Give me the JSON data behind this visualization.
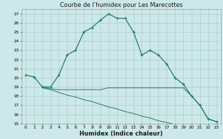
{
  "title": "Courbe de l’humidex pour Les Marecottes",
  "xlabel": "Humidex (Indice chaleur)",
  "xlim": [
    -0.5,
    23.5
  ],
  "ylim": [
    15,
    27.5
  ],
  "yticks": [
    15,
    16,
    17,
    18,
    19,
    20,
    21,
    22,
    23,
    24,
    25,
    26,
    27
  ],
  "xticks": [
    0,
    1,
    2,
    3,
    4,
    5,
    6,
    7,
    8,
    9,
    10,
    11,
    12,
    13,
    14,
    15,
    16,
    17,
    18,
    19,
    20,
    21,
    22,
    23
  ],
  "bg_color": "#cde8e8",
  "grid_color": "#aacccc",
  "line_color": "#1a7a6e",
  "line1_x": [
    0,
    1,
    2,
    3,
    4,
    5,
    6,
    7,
    8,
    9,
    10,
    11,
    12,
    13,
    14,
    15,
    16,
    17,
    18,
    19,
    20,
    21,
    22,
    23
  ],
  "line1_y": [
    20.3,
    20.1,
    19.0,
    19.0,
    20.3,
    22.5,
    23.0,
    25.0,
    25.5,
    26.3,
    27.0,
    26.5,
    26.5,
    25.0,
    22.5,
    23.0,
    22.5,
    21.5,
    20.0,
    19.3,
    18.0,
    17.0,
    15.5,
    15.2
  ],
  "line2_x": [
    2,
    3,
    4,
    5,
    6,
    7,
    8,
    9,
    10,
    11,
    12,
    13,
    14,
    15,
    16,
    17,
    18,
    19,
    20,
    21,
    22,
    23
  ],
  "line2_y": [
    19.0,
    18.8,
    18.7,
    18.7,
    18.7,
    18.7,
    18.7,
    18.7,
    18.9,
    18.9,
    18.9,
    18.9,
    18.9,
    18.9,
    18.9,
    18.9,
    18.9,
    18.9,
    18.0,
    17.0,
    15.5,
    15.2
  ],
  "line3_x": [
    2,
    3,
    4,
    5,
    6,
    7,
    8,
    9,
    10,
    11,
    12,
    13,
    14,
    15,
    16,
    17,
    18,
    19,
    20,
    21,
    22,
    23
  ],
  "line3_y": [
    18.9,
    18.7,
    18.4,
    18.1,
    17.9,
    17.6,
    17.4,
    17.1,
    16.8,
    16.6,
    16.3,
    16.1,
    15.8,
    15.6,
    15.3,
    15.1,
    14.9,
    14.8,
    14.7,
    14.6,
    14.5,
    14.5
  ],
  "title_fontsize": 6,
  "xlabel_fontsize": 6,
  "tick_fontsize": 4.5,
  "linewidth1": 0.9,
  "linewidth2": 0.7,
  "markersize": 3.5
}
